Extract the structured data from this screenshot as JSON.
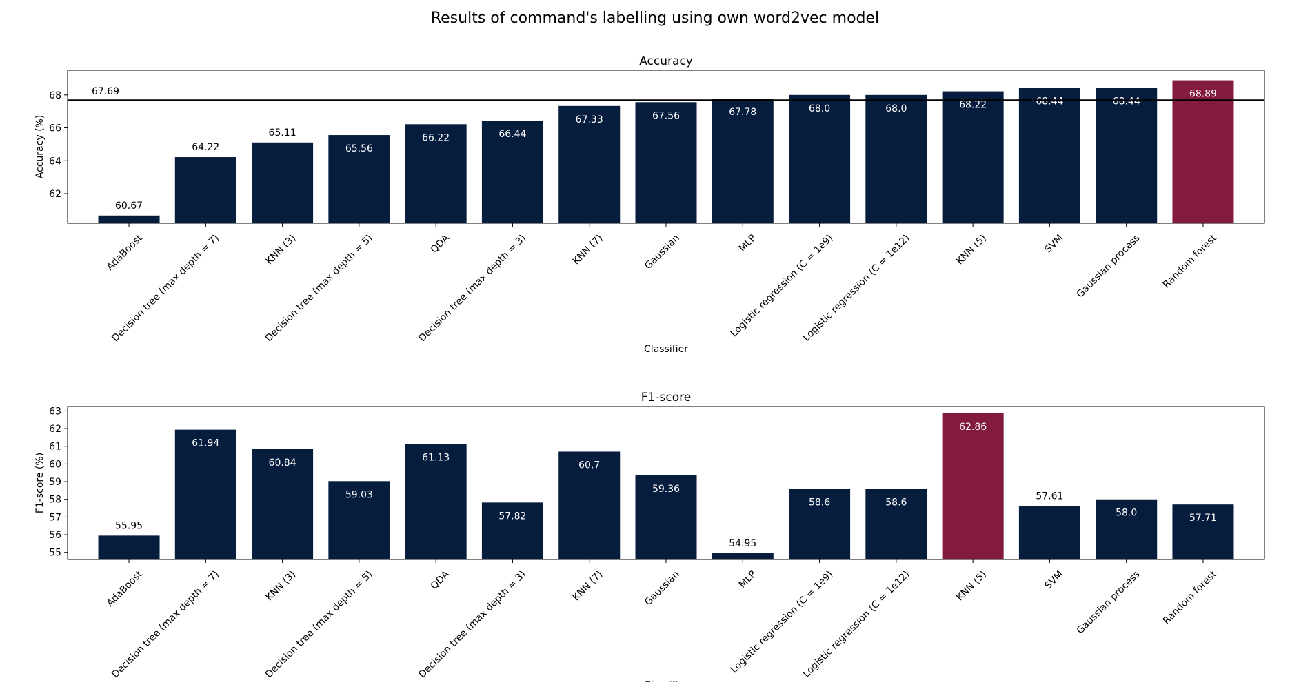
{
  "figure": {
    "title": "Results of command's labelling using own word2vec model"
  },
  "colors": {
    "bar": "#071d3e",
    "highlight": "#821b3d",
    "axis": "#000000"
  },
  "chart_data": [
    {
      "type": "bar",
      "title": "Accuracy",
      "xlabel": "Classifier",
      "ylabel": "Accuracy (%)",
      "ylim": [
        60.2,
        69.5
      ],
      "yticks": [
        62,
        64,
        66,
        68
      ],
      "categories": [
        "AdaBoost",
        "Decision tree (max depth = 7)",
        "KNN (3)",
        "Decision tree (max depth = 5)",
        "QDA",
        "Decision tree (max depth = 3)",
        "KNN (7)",
        "Gaussian",
        "MLP",
        "Logistic regression (C = 1e9)",
        "Logistic regression (C = 1e12)",
        "KNN (5)",
        "SVM",
        "Gaussian process",
        "Random forest"
      ],
      "values": [
        60.67,
        64.22,
        65.11,
        65.56,
        66.22,
        66.44,
        67.33,
        67.56,
        67.78,
        68.0,
        68.0,
        68.22,
        68.44,
        68.44,
        68.89
      ],
      "value_labels": [
        "60.67",
        "64.22",
        "65.11",
        "65.56",
        "66.22",
        "66.44",
        "67.33",
        "67.56",
        "67.78",
        "68.0",
        "68.0",
        "68.22",
        "68.44",
        "68.44",
        "68.89"
      ],
      "label_inside": [
        false,
        false,
        false,
        true,
        true,
        true,
        true,
        true,
        true,
        true,
        true,
        true,
        true,
        true,
        true
      ],
      "highlight_index": 14,
      "reference_line": {
        "value": 67.69,
        "label": "67.69"
      },
      "grid": false
    },
    {
      "type": "bar",
      "title": "F1-score",
      "xlabel": "Classifier",
      "ylabel": "F1-score (%)",
      "ylim": [
        54.6,
        63.25
      ],
      "yticks": [
        55,
        56,
        57,
        58,
        59,
        60,
        61,
        62,
        63
      ],
      "categories": [
        "AdaBoost",
        "Decision tree (max depth = 7)",
        "KNN (3)",
        "Decision tree (max depth = 5)",
        "QDA",
        "Decision tree (max depth = 3)",
        "KNN (7)",
        "Gaussian",
        "MLP",
        "Logistic regression (C = 1e9)",
        "Logistic regression (C = 1e12)",
        "KNN (5)",
        "SVM",
        "Gaussian process",
        "Random forest"
      ],
      "values": [
        55.95,
        61.94,
        60.84,
        59.03,
        61.13,
        57.82,
        60.7,
        59.36,
        54.95,
        58.6,
        58.6,
        62.86,
        57.61,
        58.0,
        57.71
      ],
      "value_labels": [
        "55.95",
        "61.94",
        "60.84",
        "59.03",
        "61.13",
        "57.82",
        "60.7",
        "59.36",
        "54.95",
        "58.6",
        "58.6",
        "62.86",
        "57.61",
        "58.0",
        "57.71"
      ],
      "label_inside": [
        false,
        true,
        true,
        true,
        true,
        true,
        true,
        true,
        false,
        true,
        true,
        true,
        false,
        true,
        true
      ],
      "highlight_index": 11,
      "grid": false
    }
  ]
}
